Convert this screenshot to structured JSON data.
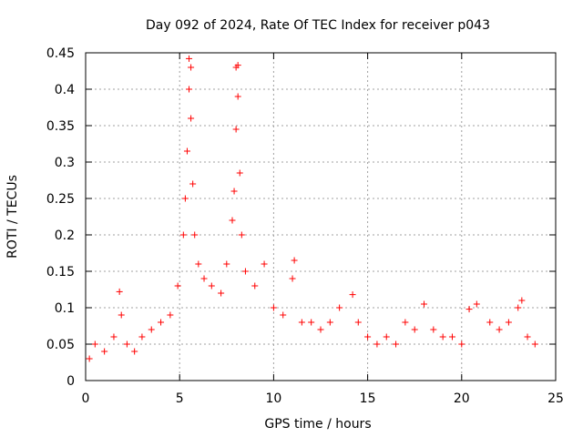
{
  "chart_data": {
    "type": "scatter",
    "title": "Day 092 of 2024, Rate Of TEC Index for receiver p043",
    "xlabel": "GPS time / hours",
    "ylabel": "ROTI / TECUs",
    "xlim": [
      0,
      25
    ],
    "ylim": [
      0,
      0.45
    ],
    "xticks": [
      0,
      5,
      10,
      15,
      20,
      25
    ],
    "yticks": [
      0,
      0.05,
      0.1,
      0.15,
      0.2,
      0.25,
      0.3,
      0.35,
      0.4,
      0.45
    ],
    "xtick_labels": [
      "0",
      "5",
      "10",
      "15",
      "20",
      "25"
    ],
    "ytick_labels": [
      "0",
      "0.05",
      "0.1",
      "0.15",
      "0.2",
      "0.25",
      "0.3",
      "0.35",
      "0.4",
      "0.45"
    ],
    "grid": true,
    "marker": "+",
    "color": "#ff0000",
    "series": [
      {
        "name": "p043",
        "points": [
          [
            0.2,
            0.03
          ],
          [
            0.5,
            0.05
          ],
          [
            1.0,
            0.04
          ],
          [
            1.5,
            0.06
          ],
          [
            1.8,
            0.122
          ],
          [
            1.9,
            0.09
          ],
          [
            2.2,
            0.05
          ],
          [
            2.6,
            0.04
          ],
          [
            3.0,
            0.06
          ],
          [
            3.5,
            0.07
          ],
          [
            4.0,
            0.08
          ],
          [
            4.5,
            0.09
          ],
          [
            4.9,
            0.13
          ],
          [
            5.2,
            0.2
          ],
          [
            5.3,
            0.25
          ],
          [
            5.4,
            0.315
          ],
          [
            5.5,
            0.442
          ],
          [
            5.5,
            0.4
          ],
          [
            5.6,
            0.43
          ],
          [
            5.6,
            0.36
          ],
          [
            5.7,
            0.27
          ],
          [
            5.8,
            0.2
          ],
          [
            6.0,
            0.16
          ],
          [
            6.3,
            0.14
          ],
          [
            6.7,
            0.13
          ],
          [
            7.2,
            0.12
          ],
          [
            7.5,
            0.16
          ],
          [
            7.8,
            0.22
          ],
          [
            7.9,
            0.26
          ],
          [
            8.0,
            0.345
          ],
          [
            8.0,
            0.43
          ],
          [
            8.1,
            0.433
          ],
          [
            8.1,
            0.39
          ],
          [
            8.2,
            0.285
          ],
          [
            8.3,
            0.2
          ],
          [
            8.5,
            0.15
          ],
          [
            9.0,
            0.13
          ],
          [
            9.5,
            0.16
          ],
          [
            10.0,
            0.1
          ],
          [
            10.5,
            0.09
          ],
          [
            11.0,
            0.14
          ],
          [
            11.1,
            0.165
          ],
          [
            11.5,
            0.08
          ],
          [
            12.0,
            0.08
          ],
          [
            12.5,
            0.07
          ],
          [
            13.0,
            0.08
          ],
          [
            13.5,
            0.1
          ],
          [
            14.2,
            0.118
          ],
          [
            14.5,
            0.08
          ],
          [
            15.0,
            0.06
          ],
          [
            15.5,
            0.05
          ],
          [
            16.0,
            0.06
          ],
          [
            16.5,
            0.05
          ],
          [
            17.0,
            0.08
          ],
          [
            17.5,
            0.07
          ],
          [
            18.0,
            0.105
          ],
          [
            18.5,
            0.07
          ],
          [
            19.0,
            0.06
          ],
          [
            19.5,
            0.06
          ],
          [
            20.0,
            0.05
          ],
          [
            20.4,
            0.098
          ],
          [
            20.8,
            0.105
          ],
          [
            21.5,
            0.08
          ],
          [
            22.0,
            0.07
          ],
          [
            22.5,
            0.08
          ],
          [
            23.0,
            0.1
          ],
          [
            23.2,
            0.11
          ],
          [
            23.5,
            0.06
          ],
          [
            23.9,
            0.05
          ]
        ]
      }
    ]
  }
}
